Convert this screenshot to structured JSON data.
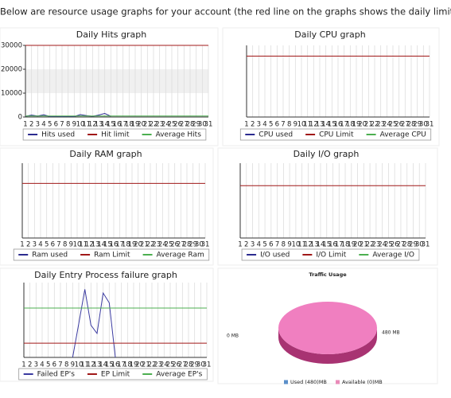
{
  "intro": "Below are resource usage graphs for your account (the red line on the graphs shows the daily limit).",
  "chart_data": [
    {
      "type": "line",
      "title": "Daily Hits graph",
      "x": [
        1,
        2,
        3,
        4,
        5,
        6,
        7,
        8,
        9,
        10,
        11,
        12,
        13,
        14,
        15,
        16,
        17,
        18,
        19,
        20,
        21,
        22,
        23,
        24,
        25,
        26,
        27,
        28,
        29,
        30,
        31
      ],
      "ylim": [
        0,
        30000
      ],
      "yticks": [
        0,
        10000,
        20000,
        30000
      ],
      "band": true,
      "series": [
        {
          "name": "Hits used",
          "color": "#2b2b8f",
          "values": [
            300,
            800,
            400,
            900,
            200,
            300,
            200,
            300,
            200,
            1000,
            600,
            300,
            800,
            1500,
            300,
            null,
            null,
            null,
            null,
            null,
            null,
            null,
            null,
            null,
            null,
            null,
            null,
            null,
            null,
            null,
            null
          ]
        },
        {
          "name": "Hit limit",
          "color": "#a01818",
          "values": [
            30000,
            30000,
            30000,
            30000,
            30000,
            30000,
            30000,
            30000,
            30000,
            30000,
            30000,
            30000,
            30000,
            30000,
            30000,
            30000,
            30000,
            30000,
            30000,
            30000,
            30000,
            30000,
            30000,
            30000,
            30000,
            30000,
            30000,
            30000,
            30000,
            30000,
            30000
          ]
        },
        {
          "name": "Average Hits",
          "color": "#4caf50",
          "values": [
            400,
            400,
            400,
            400,
            400,
            400,
            400,
            400,
            400,
            400,
            400,
            400,
            400,
            400,
            400,
            400,
            400,
            400,
            400,
            400,
            400,
            400,
            400,
            400,
            400,
            400,
            400,
            400,
            400,
            400,
            400
          ]
        }
      ]
    },
    {
      "type": "line",
      "title": "Daily CPU graph",
      "x": [
        1,
        2,
        3,
        4,
        5,
        6,
        7,
        8,
        9,
        10,
        11,
        12,
        13,
        14,
        15,
        16,
        17,
        18,
        19,
        20,
        21,
        22,
        23,
        24,
        25,
        26,
        27,
        28,
        29,
        30,
        31
      ],
      "ylim": [
        0,
        100
      ],
      "series": [
        {
          "name": "CPU used",
          "color": "#2b2b8f",
          "values": [
            null,
            null,
            null,
            null,
            null,
            null,
            null,
            null,
            null,
            null,
            null,
            null,
            null,
            null,
            null,
            null,
            null,
            null,
            null,
            null,
            null,
            null,
            null,
            null,
            null,
            null,
            null,
            null,
            null,
            null,
            null
          ]
        },
        {
          "name": "CPU Limit",
          "color": "#a01818",
          "values": [
            85,
            85,
            85,
            85,
            85,
            85,
            85,
            85,
            85,
            85,
            85,
            85,
            85,
            85,
            85,
            85,
            85,
            85,
            85,
            85,
            85,
            85,
            85,
            85,
            85,
            85,
            85,
            85,
            85,
            85,
            85
          ]
        },
        {
          "name": "Average CPU",
          "color": "#4caf50",
          "values": [
            null,
            null,
            null,
            null,
            null,
            null,
            null,
            null,
            null,
            null,
            null,
            null,
            null,
            null,
            null,
            null,
            null,
            null,
            null,
            null,
            null,
            null,
            null,
            null,
            null,
            null,
            null,
            null,
            null,
            null,
            null
          ]
        }
      ]
    },
    {
      "type": "line",
      "title": "Daily RAM graph",
      "x": [
        1,
        2,
        3,
        4,
        5,
        6,
        7,
        8,
        9,
        10,
        11,
        12,
        13,
        14,
        15,
        16,
        17,
        18,
        19,
        20,
        21,
        22,
        23,
        24,
        25,
        26,
        27,
        28,
        29,
        30,
        31
      ],
      "ylim": [
        0,
        100
      ],
      "series": [
        {
          "name": "Ram used",
          "color": "#2b2b8f",
          "values": [
            null,
            null,
            null,
            null,
            null,
            null,
            null,
            null,
            null,
            null,
            null,
            null,
            null,
            null,
            null,
            null,
            null,
            null,
            null,
            null,
            null,
            null,
            null,
            null,
            null,
            null,
            null,
            null,
            null,
            null,
            null
          ]
        },
        {
          "name": "Ram Limit",
          "color": "#a01818",
          "values": [
            73,
            73,
            73,
            73,
            73,
            73,
            73,
            73,
            73,
            73,
            73,
            73,
            73,
            73,
            73,
            73,
            73,
            73,
            73,
            73,
            73,
            73,
            73,
            73,
            73,
            73,
            73,
            73,
            73,
            73,
            73
          ]
        },
        {
          "name": "Average Ram",
          "color": "#4caf50",
          "values": [
            null,
            null,
            null,
            null,
            null,
            null,
            null,
            null,
            null,
            null,
            null,
            null,
            null,
            null,
            null,
            null,
            null,
            null,
            null,
            null,
            null,
            null,
            null,
            null,
            null,
            null,
            null,
            null,
            null,
            null,
            null
          ]
        }
      ]
    },
    {
      "type": "line",
      "title": "Daily I/O graph",
      "x": [
        1,
        2,
        3,
        4,
        5,
        6,
        7,
        8,
        9,
        10,
        11,
        12,
        13,
        14,
        15,
        16,
        17,
        18,
        19,
        20,
        21,
        22,
        23,
        24,
        25,
        26,
        27,
        28,
        29,
        30,
        31
      ],
      "ylim": [
        0,
        100
      ],
      "series": [
        {
          "name": "I/O used",
          "color": "#2b2b8f",
          "values": [
            null,
            null,
            null,
            null,
            null,
            null,
            null,
            null,
            null,
            null,
            null,
            null,
            null,
            null,
            null,
            null,
            null,
            null,
            null,
            null,
            null,
            null,
            null,
            null,
            null,
            null,
            null,
            null,
            null,
            null,
            null
          ]
        },
        {
          "name": "I/O Limit",
          "color": "#a01818",
          "values": [
            70,
            70,
            70,
            70,
            70,
            70,
            70,
            70,
            70,
            70,
            70,
            70,
            70,
            70,
            70,
            70,
            70,
            70,
            70,
            70,
            70,
            70,
            70,
            70,
            70,
            70,
            70,
            70,
            70,
            70,
            70
          ]
        },
        {
          "name": "Average I/O",
          "color": "#4caf50",
          "values": [
            null,
            null,
            null,
            null,
            null,
            null,
            null,
            null,
            null,
            null,
            null,
            null,
            null,
            null,
            null,
            null,
            null,
            null,
            null,
            null,
            null,
            null,
            null,
            null,
            null,
            null,
            null,
            null,
            null,
            null,
            null
          ]
        }
      ]
    },
    {
      "type": "line",
      "title": "Daily Entry Process failure graph",
      "x": [
        1,
        2,
        3,
        4,
        5,
        6,
        7,
        8,
        9,
        10,
        11,
        12,
        13,
        14,
        15,
        16,
        17,
        18,
        19,
        20,
        21,
        22,
        23,
        24,
        25,
        26,
        27,
        28,
        29,
        30,
        31
      ],
      "ylim": [
        0,
        100
      ],
      "series": [
        {
          "name": "Failed EP's",
          "color": "#3a3aa0",
          "values": [
            null,
            null,
            null,
            null,
            null,
            null,
            null,
            null,
            0,
            45,
            91,
            43,
            32,
            86,
            73,
            0,
            null,
            null,
            null,
            null,
            null,
            null,
            null,
            null,
            null,
            null,
            null,
            null,
            null,
            null,
            null
          ]
        },
        {
          "name": "EP Limit",
          "color": "#a01818",
          "values": [
            19,
            19,
            19,
            19,
            19,
            19,
            19,
            19,
            19,
            19,
            19,
            19,
            19,
            19,
            19,
            19,
            19,
            19,
            19,
            19,
            19,
            19,
            19,
            19,
            19,
            19,
            19,
            19,
            19,
            19,
            19
          ]
        },
        {
          "name": "Average EP's",
          "color": "#4caf50",
          "values": [
            66,
            66,
            66,
            66,
            66,
            66,
            66,
            66,
            66,
            66,
            66,
            66,
            66,
            66,
            66,
            66,
            66,
            66,
            66,
            66,
            66,
            66,
            66,
            66,
            66,
            66,
            66,
            66,
            66,
            66,
            66
          ]
        }
      ]
    },
    {
      "type": "pie",
      "title": "Traffic Usage",
      "labels": [
        "Used (480)MB",
        "Available (0)MB"
      ],
      "values": [
        480,
        0
      ],
      "value_labels": [
        "480 MB",
        "0 MB"
      ],
      "colors": [
        "#f07fc0",
        "#f07fc0"
      ],
      "legend_colors": [
        "#5b8fc9",
        "#e98ab8"
      ]
    }
  ]
}
